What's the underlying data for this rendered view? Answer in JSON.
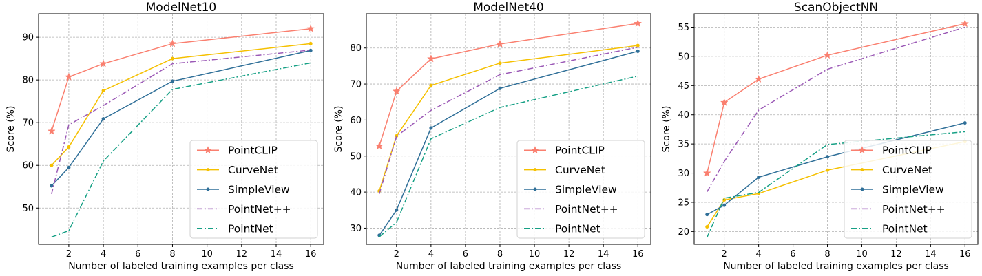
{
  "chart_data": [
    {
      "type": "line",
      "title": "ModelNet10",
      "xlabel": "Number of labeled training examples per class",
      "ylabel": "Score (%)",
      "x": [
        1,
        2,
        4,
        8,
        16
      ],
      "xlim": [
        0.25,
        16.75
      ],
      "ylim": [
        41.5,
        95.5
      ],
      "xticks": [
        2,
        4,
        6,
        8,
        10,
        12,
        14,
        16
      ],
      "yticks": [
        50,
        60,
        70,
        80,
        90
      ],
      "grid": true,
      "legend_position": "lower-right",
      "series": [
        {
          "name": "PointCLIP",
          "color": "#fa7f6f",
          "marker": "star",
          "dash": "solid",
          "values": [
            68.0,
            80.7,
            83.8,
            88.5,
            92.0
          ]
        },
        {
          "name": "CurveNet",
          "color": "#f5c000",
          "marker": "dot",
          "dash": "solid",
          "values": [
            60.0,
            64.3,
            77.5,
            85.0,
            88.5
          ]
        },
        {
          "name": "SimpleView",
          "color": "#2f6f98",
          "marker": "dot",
          "dash": "solid",
          "values": [
            55.2,
            59.5,
            70.9,
            79.7,
            86.9
          ]
        },
        {
          "name": "PointNet++",
          "color": "#9b59b6",
          "marker": "none",
          "dash": "dashdot",
          "values": [
            53.3,
            69.5,
            74.0,
            83.8,
            87.0
          ]
        },
        {
          "name": "PointNet",
          "color": "#16a085",
          "marker": "none",
          "dash": "dashdot",
          "values": [
            43.2,
            44.7,
            61.0,
            77.8,
            84.0
          ]
        }
      ]
    },
    {
      "type": "line",
      "title": "ModelNet40",
      "xlabel": "Number of labeled training examples per class",
      "ylabel": "Score (%)",
      "x": [
        1,
        2,
        4,
        8,
        16
      ],
      "xlim": [
        0.25,
        16.75
      ],
      "ylim": [
        25.5,
        89.5
      ],
      "xticks": [
        2,
        4,
        6,
        8,
        10,
        12,
        14,
        16
      ],
      "yticks": [
        30,
        40,
        50,
        60,
        70,
        80
      ],
      "grid": true,
      "legend_position": "lower-right",
      "series": [
        {
          "name": "PointCLIP",
          "color": "#fa7f6f",
          "marker": "star",
          "dash": "solid",
          "values": [
            52.8,
            68.0,
            77.0,
            81.1,
            86.8
          ]
        },
        {
          "name": "CurveNet",
          "color": "#f5c000",
          "marker": "dot",
          "dash": "solid",
          "values": [
            40.3,
            55.6,
            69.6,
            75.8,
            80.7
          ]
        },
        {
          "name": "SimpleView",
          "color": "#2f6f98",
          "marker": "dot",
          "dash": "solid",
          "values": [
            28.0,
            35.0,
            57.8,
            68.8,
            79.1
          ]
        },
        {
          "name": "PointNet++",
          "color": "#9b59b6",
          "marker": "none",
          "dash": "dashdot",
          "values": [
            39.5,
            55.5,
            62.7,
            72.6,
            80.2
          ]
        },
        {
          "name": "PointNet",
          "color": "#16a085",
          "marker": "none",
          "dash": "dashdot",
          "values": [
            27.6,
            31.6,
            54.8,
            63.5,
            72.2
          ]
        }
      ]
    },
    {
      "type": "line",
      "title": "ScanObjectNN",
      "xlabel": "Number of labeled training examples per class",
      "ylabel": "Score (%)",
      "x": [
        1,
        2,
        4,
        8,
        16
      ],
      "xlim": [
        0.25,
        16.75
      ],
      "ylim": [
        17.8,
        57.3
      ],
      "xticks": [
        2,
        4,
        6,
        8,
        10,
        12,
        14,
        16
      ],
      "yticks": [
        20,
        25,
        30,
        35,
        40,
        45,
        50,
        55
      ],
      "grid": true,
      "legend_position": "lower-right",
      "series": [
        {
          "name": "PointCLIP",
          "color": "#fa7f6f",
          "marker": "star",
          "dash": "solid",
          "values": [
            30.0,
            42.1,
            46.1,
            50.2,
            55.6
          ]
        },
        {
          "name": "CurveNet",
          "color": "#f5c000",
          "marker": "dot",
          "dash": "solid",
          "values": [
            20.8,
            25.4,
            26.5,
            30.5,
            35.4
          ]
        },
        {
          "name": "SimpleView",
          "color": "#2f6f98",
          "marker": "dot",
          "dash": "solid",
          "values": [
            22.9,
            24.5,
            29.3,
            32.8,
            38.6
          ]
        },
        {
          "name": "PointNet++",
          "color": "#9b59b6",
          "marker": "none",
          "dash": "dashdot",
          "values": [
            26.8,
            32.0,
            40.8,
            47.8,
            55.0
          ]
        },
        {
          "name": "PointNet",
          "color": "#16a085",
          "marker": "none",
          "dash": "dashdot",
          "values": [
            19.0,
            25.7,
            26.7,
            34.9,
            37.1
          ]
        }
      ]
    }
  ]
}
